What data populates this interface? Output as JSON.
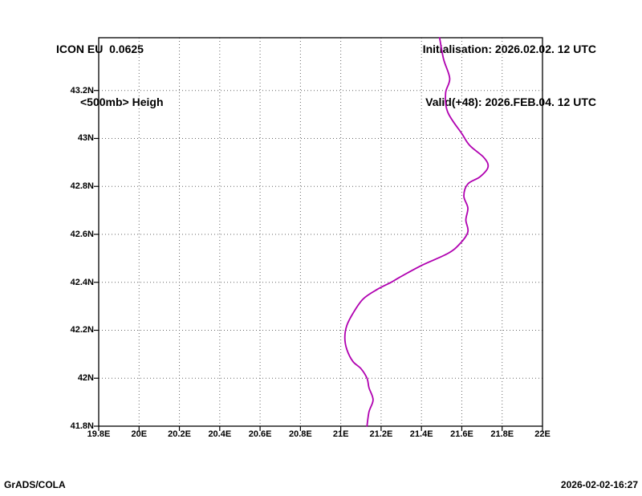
{
  "header": {
    "model_line": "ICON EU  0.0625",
    "field_line": "<500mb> Heigh",
    "init_line": "Initialisation: 2026.02.02. 12 UTC",
    "valid_line": "Valid(+48): 2026.FEB.04. 12 UTC"
  },
  "footer": {
    "generator": "GrADS/COLA",
    "timestamp": "2026-02-02-16:27"
  },
  "chart_data": {
    "type": "line",
    "title": "<500mb> Heigh",
    "xlabel": "",
    "ylabel": "",
    "grid": "dotted",
    "xlim": [
      19.8,
      22.0
    ],
    "ylim": [
      41.8,
      43.42
    ],
    "x_tick_values": [
      19.8,
      20.0,
      20.2,
      20.4,
      20.6,
      20.8,
      21.0,
      21.2,
      21.4,
      21.6,
      21.8,
      22.0
    ],
    "x_tick_labels": [
      "19.8E",
      "20E",
      "20.2E",
      "20.4E",
      "20.6E",
      "20.8E",
      "21E",
      "21.2E",
      "21.4E",
      "21.6E",
      "21.8E",
      "22E"
    ],
    "y_tick_values": [
      41.8,
      42.0,
      42.2,
      42.4,
      42.6,
      42.8,
      43.0,
      43.2
    ],
    "y_tick_labels": [
      "41.8N",
      "42N",
      "42.2N",
      "42.4N",
      "42.6N",
      "42.8N",
      "43N",
      "43.2N"
    ],
    "series": [
      {
        "name": "map-outline",
        "color": "#b000b0",
        "points": [
          [
            21.49,
            43.42
          ],
          [
            21.51,
            43.33
          ],
          [
            21.54,
            43.25
          ],
          [
            21.52,
            43.19
          ],
          [
            21.53,
            43.11
          ],
          [
            21.6,
            43.02
          ],
          [
            21.64,
            42.97
          ],
          [
            21.71,
            42.92
          ],
          [
            21.73,
            42.88
          ],
          [
            21.69,
            42.84
          ],
          [
            21.63,
            42.81
          ],
          [
            21.61,
            42.76
          ],
          [
            21.63,
            42.71
          ],
          [
            21.62,
            42.66
          ],
          [
            21.63,
            42.61
          ],
          [
            21.59,
            42.56
          ],
          [
            21.53,
            42.52
          ],
          [
            21.4,
            42.47
          ],
          [
            21.29,
            42.42
          ],
          [
            21.25,
            42.4
          ],
          [
            21.18,
            42.37
          ],
          [
            21.11,
            42.33
          ],
          [
            21.06,
            42.27
          ],
          [
            21.03,
            42.22
          ],
          [
            21.02,
            42.17
          ],
          [
            21.03,
            42.12
          ],
          [
            21.06,
            42.07
          ],
          [
            21.1,
            42.04
          ],
          [
            21.13,
            42.0
          ],
          [
            21.14,
            41.96
          ],
          [
            21.16,
            41.91
          ],
          [
            21.14,
            41.86
          ],
          [
            21.13,
            41.8
          ]
        ]
      }
    ]
  }
}
